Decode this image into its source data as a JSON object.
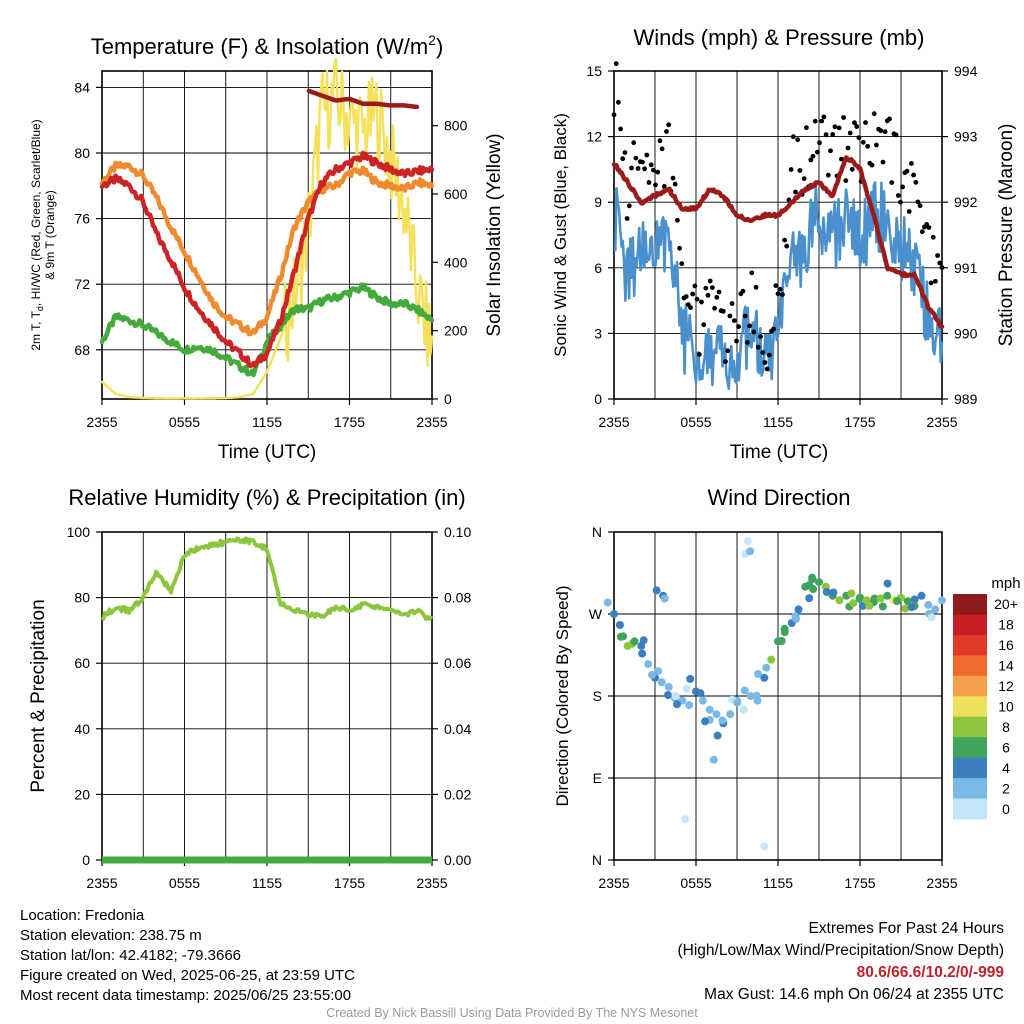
{
  "panels": {
    "temperature": {
      "title_main": "Temperature (F) & Insolation (W/m",
      "title_sup": "2",
      "title_end": ")",
      "ylabel_left_line1_a": "2m T, T",
      "ylabel_left_line1_sub": "d",
      "ylabel_left_line1_b": ", HI/WC (Red, Green, Scarlet/Blue)",
      "ylabel_left_line2": "& 9m T (Orange)",
      "ylabel_right": "Solar Insolation (Yellow)",
      "xlabel": "Time (UTC)"
    },
    "winds": {
      "title": "Winds (mph) & Pressure (mb)",
      "ylabel_left": "Sonic Wind & Gust (Blue, Black)",
      "ylabel_right": "Station Pressure (Maroon)",
      "xlabel": "Time (UTC)"
    },
    "humidity": {
      "title": "Relative Humidity (%) & Precipitation (in)",
      "ylabel_left": "Percent & Precipitation"
    },
    "direction": {
      "title": "Wind Direction",
      "ylabel_left": "Direction (Colored By Speed)",
      "colorbar_title": "mph"
    }
  },
  "colors": {
    "air_temp": "#cc2424",
    "dewpoint": "#44aa3c",
    "temp_9m": "#f08a2e",
    "insolation": "#f5e05a",
    "wind": "#4a90cc",
    "gust": "#000000",
    "pressure": "#9b1b1b",
    "humidity": "#8cc63f",
    "precip": "#44aa3c"
  },
  "colorbar": {
    "labels": [
      "20+",
      "18",
      "16",
      "14",
      "12",
      "10",
      "8",
      "6",
      "4",
      "2",
      "0"
    ],
    "colors": [
      "#8e1a1a",
      "#c31f24",
      "#e03a2a",
      "#f06a2e",
      "#f7a04a",
      "#ede05a",
      "#8cc63f",
      "#3fa45c",
      "#3b7fbf",
      "#7ab8e6",
      "#c4e6fa"
    ]
  },
  "chart_data": [
    {
      "type": "line",
      "title": "Temperature (F) & Insolation (W/m2)",
      "xlabel": "Time (UTC)",
      "ylabel": "2m T, Td, HI/WC (Red, Green, Scarlet/Blue) & 9m T (Orange)",
      "y2label": "Solar Insolation (Yellow)",
      "x_tick_labels": [
        "2355",
        "0555",
        "1155",
        "1755",
        "2355"
      ],
      "ylim": [
        65,
        85
      ],
      "yticks": [
        68,
        72,
        76,
        80,
        84
      ],
      "y2lim": [
        0,
        960
      ],
      "y2ticks": [
        0,
        200,
        400,
        600,
        800
      ],
      "x_hours": [
        0,
        1,
        2,
        3,
        4,
        5,
        6,
        7,
        8,
        9,
        10,
        11,
        12,
        13,
        14,
        15,
        16,
        17,
        18,
        19,
        20,
        21,
        22,
        23,
        24
      ],
      "series": [
        {
          "name": "2m T",
          "axis": "left",
          "values": [
            78.0,
            78.4,
            78.0,
            77.0,
            75.0,
            73.5,
            71.8,
            70.5,
            69.5,
            68.5,
            67.8,
            67.0,
            67.8,
            69.8,
            72.8,
            76.0,
            78.2,
            79.0,
            79.4,
            79.8,
            79.4,
            79.0,
            78.7,
            78.9,
            79.0
          ]
        },
        {
          "name": "2m Td",
          "axis": "left",
          "values": [
            68.5,
            70.0,
            69.8,
            69.5,
            69.0,
            68.5,
            68.0,
            68.2,
            68.0,
            67.5,
            67.0,
            66.5,
            68.5,
            69.5,
            70.5,
            70.5,
            71.0,
            71.2,
            71.5,
            71.8,
            71.2,
            70.8,
            70.8,
            70.4,
            69.8
          ]
        },
        {
          "name": "9m T",
          "axis": "left",
          "values": [
            78.2,
            79.2,
            79.2,
            78.6,
            77.2,
            75.5,
            74.0,
            72.5,
            71.0,
            70.0,
            69.5,
            69.0,
            70.0,
            72.5,
            75.5,
            77.0,
            77.8,
            78.0,
            78.8,
            78.9,
            78.2,
            78.0,
            77.8,
            78.2,
            78.0
          ]
        },
        {
          "name": "HI",
          "axis": "left",
          "values": [
            null,
            null,
            null,
            null,
            null,
            null,
            null,
            null,
            null,
            null,
            null,
            null,
            null,
            null,
            null,
            83.8,
            83.5,
            83.2,
            83.3,
            83.0,
            83.0,
            82.9,
            82.9,
            82.8,
            null
          ]
        },
        {
          "name": "Solar Insolation",
          "axis": "right",
          "values": [
            50,
            15,
            5,
            3,
            2,
            2,
            2,
            2,
            2,
            3,
            5,
            15,
            80,
            180,
            300,
            500,
            840,
            880,
            820,
            780,
            840,
            700,
            560,
            300,
            150
          ]
        }
      ]
    },
    {
      "type": "line",
      "title": "Winds (mph) & Pressure (mb)",
      "xlabel": "Time (UTC)",
      "ylabel": "Sonic Wind & Gust (Blue, Black)",
      "y2label": "Station Pressure (Maroon)",
      "x_tick_labels": [
        "2355",
        "0555",
        "1155",
        "1755",
        "2355"
      ],
      "ylim": [
        0,
        15
      ],
      "yticks": [
        0,
        3,
        6,
        9,
        12,
        15
      ],
      "y2lim": [
        989,
        994
      ],
      "y2ticks": [
        989,
        990,
        991,
        992,
        993,
        994
      ],
      "x_hours": [
        0,
        1,
        2,
        3,
        4,
        5,
        6,
        7,
        8,
        9,
        10,
        11,
        12,
        13,
        14,
        15,
        16,
        17,
        18,
        19,
        20,
        21,
        22,
        23,
        24
      ],
      "series": [
        {
          "name": "Sonic Wind",
          "axis": "left",
          "values": [
            8.5,
            5.5,
            7.0,
            6.5,
            8.0,
            3.0,
            2.0,
            2.5,
            1.5,
            2.0,
            3.0,
            1.5,
            2.5,
            6.0,
            7.0,
            8.5,
            7.5,
            8.0,
            7.0,
            8.5,
            8.0,
            7.0,
            6.0,
            4.0,
            2.5
          ]
        },
        {
          "name": "Gust",
          "axis": "left",
          "values": [
            14.6,
            9.5,
            11.0,
            10.0,
            11.5,
            5.5,
            3.5,
            4.0,
            3.0,
            3.0,
            4.5,
            2.5,
            4.0,
            10.5,
            11.0,
            12.0,
            11.0,
            11.5,
            11.0,
            12.0,
            11.5,
            10.0,
            9.0,
            7.0,
            4.5
          ]
        },
        {
          "name": "Station Pressure",
          "axis": "right",
          "values": [
            992.6,
            992.3,
            992.0,
            992.1,
            992.2,
            991.9,
            991.9,
            992.2,
            992.1,
            991.8,
            991.7,
            991.8,
            991.8,
            992.0,
            992.2,
            992.3,
            992.1,
            992.7,
            992.5,
            991.8,
            991.0,
            990.9,
            990.9,
            990.4,
            990.1
          ]
        }
      ]
    },
    {
      "type": "line",
      "title": "Relative Humidity (%) & Precipitation (in)",
      "ylabel": "Percent & Precipitation",
      "x_tick_labels": [
        "2355",
        "0555",
        "1155",
        "1755",
        "2355"
      ],
      "ylim": [
        0,
        100
      ],
      "yticks": [
        0,
        20,
        40,
        60,
        80,
        100
      ],
      "y2lim": [
        0,
        0.1
      ],
      "y2ticks": [
        "0.00",
        "0.02",
        "0.04",
        "0.06",
        "0.08",
        "0.10"
      ],
      "x_hours": [
        0,
        1,
        2,
        3,
        4,
        5,
        6,
        7,
        8,
        9,
        10,
        11,
        12,
        13,
        14,
        15,
        16,
        17,
        18,
        19,
        20,
        21,
        22,
        23,
        24
      ],
      "series": [
        {
          "name": "Relative Humidity",
          "axis": "left",
          "values": [
            74,
            77,
            76,
            80,
            88,
            82,
            93,
            95,
            96,
            97,
            97.5,
            97,
            95,
            78,
            76,
            75,
            74,
            77,
            76,
            78,
            77,
            76,
            75,
            76,
            73
          ]
        },
        {
          "name": "Precipitation",
          "axis": "right",
          "values": [
            0,
            0,
            0,
            0,
            0,
            0,
            0,
            0,
            0,
            0,
            0,
            0,
            0,
            0,
            0,
            0,
            0,
            0,
            0,
            0,
            0,
            0,
            0,
            0,
            0
          ]
        }
      ]
    },
    {
      "type": "scatter",
      "title": "Wind Direction",
      "ylabel": "Direction (Colored By Speed)",
      "x_tick_labels": [
        "2355",
        "0555",
        "1155",
        "1755",
        "2355"
      ],
      "y_tick_labels": [
        "N",
        "E",
        "S",
        "W",
        "N"
      ],
      "ylim": [
        0,
        360
      ],
      "colorbar_title": "mph",
      "series": [
        {
          "name": "Wind Direction",
          "x": [
            0,
            0.5,
            1,
            1.5,
            2,
            2.5,
            3,
            3.5,
            4,
            4.5,
            5,
            5.5,
            6,
            6.5,
            7,
            7.5,
            8,
            8.5,
            9,
            9.5,
            10,
            10.5,
            11,
            11.5,
            12,
            12.5,
            13,
            13.5,
            14,
            14.5,
            15,
            15.5,
            16,
            16.5,
            17,
            17.5,
            18,
            18.5,
            19,
            19.5,
            20,
            20.5,
            21,
            21.5,
            22,
            22.5,
            23,
            23.5,
            24,
            5.2,
            9.8,
            11.0,
            3.6,
            7.3
          ],
          "direction": [
            270,
            245,
            235,
            240,
            235,
            215,
            200,
            195,
            190,
            180,
            175,
            170,
            185,
            175,
            165,
            160,
            150,
            160,
            175,
            165,
            180,
            175,
            200,
            220,
            240,
            250,
            260,
            275,
            300,
            310,
            305,
            300,
            290,
            285,
            290,
            282,
            288,
            285,
            283,
            287,
            290,
            285,
            288,
            284,
            286,
            290,
            280,
            275,
            285,
            45,
            350,
            15,
            290,
            110
          ],
          "speed": [
            4,
            7,
            8,
            6,
            5,
            3,
            4,
            2,
            3,
            1,
            3,
            2,
            4,
            2,
            3,
            2,
            4,
            3,
            2,
            1,
            2,
            3,
            4,
            8,
            7,
            6,
            5,
            4,
            6,
            7,
            7,
            8,
            6,
            9,
            7,
            8,
            6,
            9,
            7,
            8,
            6,
            10,
            8,
            7,
            5,
            4,
            3,
            2,
            3,
            1,
            1,
            1,
            4,
            2
          ]
        }
      ]
    }
  ],
  "footer": {
    "location": "Location: Fredonia",
    "elevation": "Station elevation: 238.75 m",
    "latlon": "Station lat/lon: 42.4182; -79.3666",
    "created": "Figure created on Wed, 2025-06-25, at 23:59 UTC",
    "recent": "Most recent data timestamp: 2025/06/25 23:55:00",
    "extremes_title": "Extremes For Past 24 Hours",
    "extremes_legend": "(High/Low/Max Wind/Precipitation/Snow Depth)",
    "extremes_values": "80.6/66.6/10.2/0/-999",
    "max_gust": "Max Gust: 14.6 mph On 06/24 at 2355 UTC",
    "credit": "Created By Nick Bassill Using Data Provided By The NYS Mesonet"
  }
}
